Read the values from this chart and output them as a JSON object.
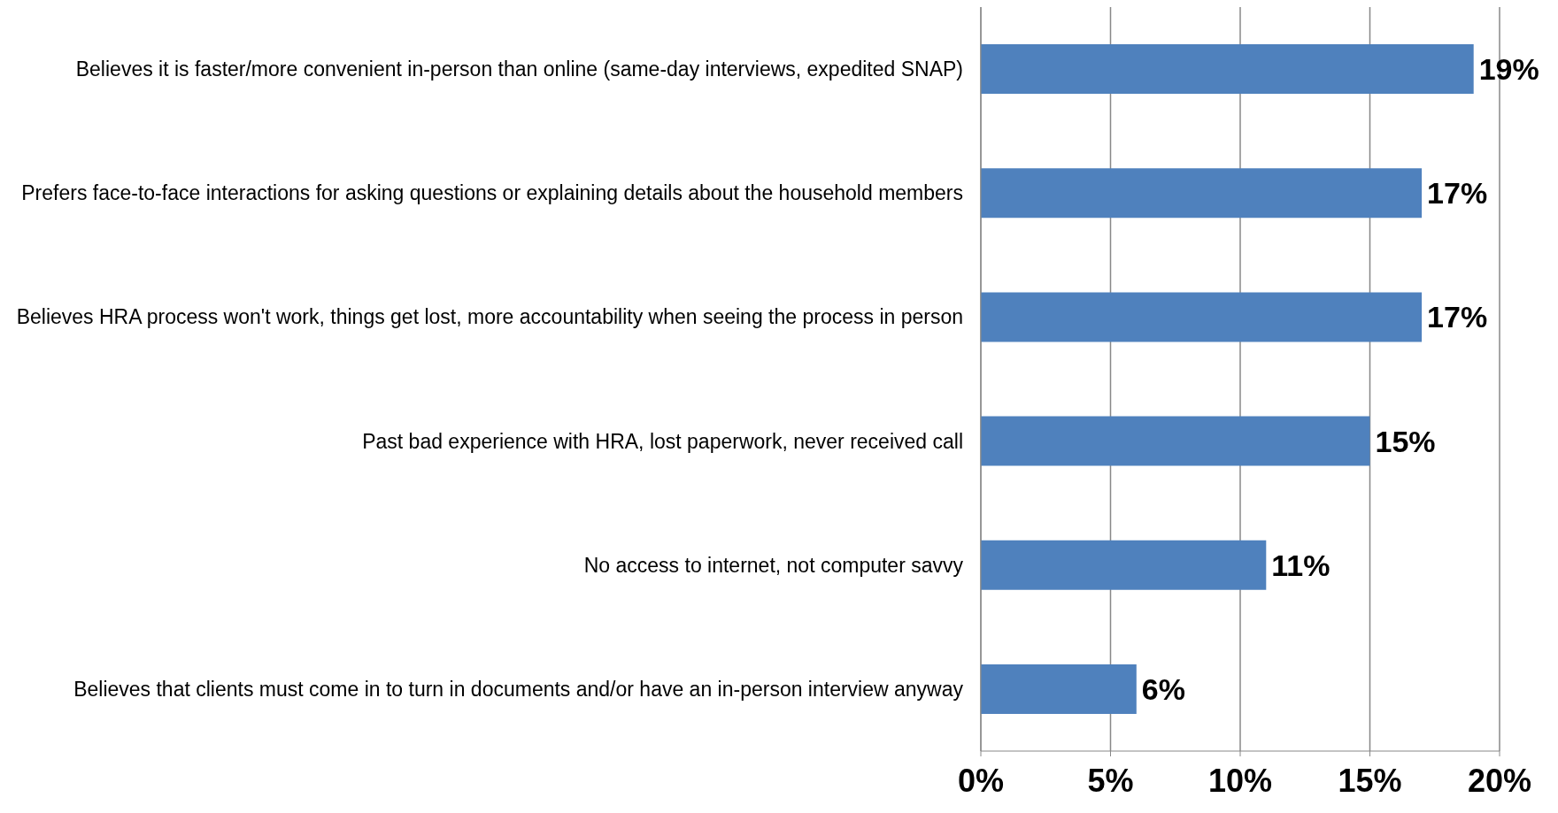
{
  "chart_data": {
    "type": "bar",
    "orientation": "horizontal",
    "categories": [
      "Believes it is faster/more convenient in-person than online (same-day interviews, expedited SNAP)",
      "Prefers face-to-face interactions for asking questions or explaining details about the household members",
      "Believes HRA process won't work, things get lost, more accountability when seeing the process in person",
      "Past bad experience with HRA, lost paperwork, never received call",
      "No access to internet, not computer savvy",
      "Believes that clients must come in to turn in documents and/or have an in-person interview anyway"
    ],
    "values": [
      19,
      17,
      17,
      15,
      11,
      6
    ],
    "value_labels": [
      "19%",
      "17%",
      "17%",
      "15%",
      "11%",
      "6%"
    ],
    "color": "#4f81bd",
    "xlim": [
      0,
      20
    ],
    "xticks": [
      {
        "value": 0,
        "label": "0%"
      },
      {
        "value": 5,
        "label": "5%"
      },
      {
        "value": 10,
        "label": "10%"
      },
      {
        "value": 15,
        "label": "15%"
      },
      {
        "value": 20,
        "label": "20%"
      }
    ],
    "grid": "x"
  }
}
